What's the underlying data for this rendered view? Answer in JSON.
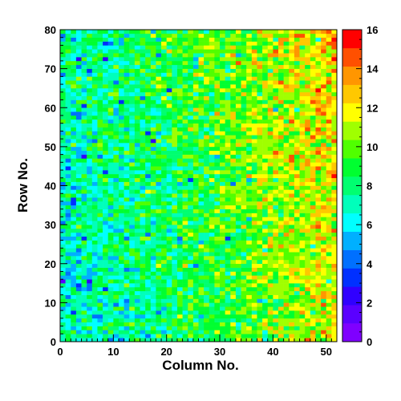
{
  "chart_data": {
    "type": "heatmap",
    "title": "",
    "xlabel": "Column No.",
    "ylabel": "Row No.",
    "xlim": [
      0,
      52
    ],
    "ylim": [
      0,
      80
    ],
    "x_bins": 52,
    "y_bins": 80,
    "x_ticks": [
      0,
      10,
      20,
      30,
      40,
      50
    ],
    "y_ticks": [
      0,
      10,
      20,
      30,
      40,
      50,
      60,
      70,
      80
    ],
    "z_range": [
      0,
      16
    ],
    "colorbar_ticks": [
      0,
      2,
      4,
      6,
      8,
      10,
      12,
      14,
      16
    ],
    "colorbar_position": "right",
    "palette": [
      "#7f00ff",
      "#5a00ff",
      "#3000ff",
      "#0030ff",
      "#0070ff",
      "#00b0ff",
      "#00ffff",
      "#00ffbb",
      "#00ff70",
      "#00ff30",
      "#50ff00",
      "#a0ff00",
      "#ffff00",
      "#ffc800",
      "#ff9600",
      "#ff5000",
      "#ff0000"
    ],
    "trend": "counts rise from about 7 on the left (columns 0-20) to about 12-13 on the right (columns 40-52); a mild upward trend with row number is also visible"
  }
}
